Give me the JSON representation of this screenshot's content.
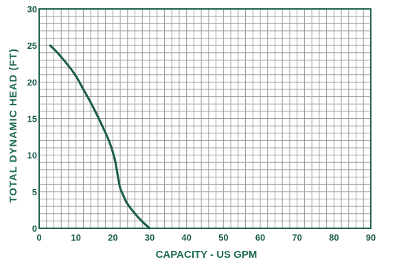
{
  "chart_data": {
    "type": "line",
    "title": "",
    "xlabel": "CAPACITY - US GPM",
    "ylabel": "TOTAL DYNAMIC HEAD (FT)",
    "xlim": [
      0,
      90
    ],
    "ylim": [
      0,
      30
    ],
    "x_ticks": [
      "0",
      "10",
      "20",
      "30",
      "40",
      "50",
      "60",
      "70",
      "80",
      "90"
    ],
    "y_ticks": [
      "0",
      "5",
      "10",
      "15",
      "20",
      "25",
      "30"
    ],
    "grid": true,
    "minor_grid_step": 2,
    "colors": {
      "curve": "#1f5f4f",
      "grid": "#9a9a9a",
      "axis": "#1f5f4f",
      "text": "#1f6b55"
    },
    "series": [
      {
        "name": "",
        "x": [
          3,
          5,
          8,
          10,
          12,
          14,
          16,
          17.5,
          18.5,
          19.5,
          20.5,
          21,
          21.5,
          22,
          23,
          24,
          26,
          28,
          30
        ],
        "y": [
          25,
          24,
          22.2,
          20.8,
          19,
          17.2,
          15.2,
          13.6,
          12.5,
          11.2,
          9.5,
          8.2,
          6.7,
          5.5,
          4.3,
          3.3,
          2,
          0.9,
          0
        ]
      }
    ]
  }
}
